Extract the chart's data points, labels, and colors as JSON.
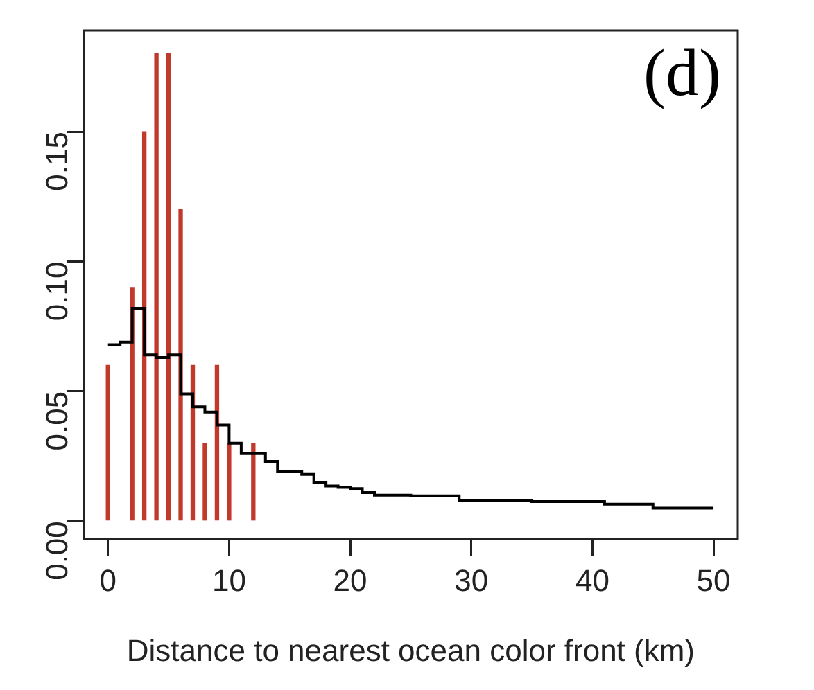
{
  "chart_data": {
    "type": "bar",
    "xlabel": "Distance to nearest ocean color front (km)",
    "annotations": [
      "(d)"
    ],
    "xlim": [
      -2,
      52
    ],
    "xticks": [
      0,
      10,
      20,
      30,
      40,
      50
    ],
    "ylim": [
      -0.007,
      0.189
    ],
    "yticks": [
      {
        "value": 0,
        "label": "0.00"
      },
      {
        "value": 0.05,
        "label": "0.05"
      },
      {
        "value": 0.1,
        "label": "0.10"
      },
      {
        "value": 0.15,
        "label": "0.15"
      }
    ],
    "grid": false,
    "legend": false,
    "series": [
      {
        "color": "#c0392b",
        "x": [
          0,
          2,
          3,
          4,
          5,
          6,
          7,
          8,
          9,
          10,
          12
        ],
        "values": [
          0.06,
          0.09,
          0.15,
          0.18,
          0.18,
          0.12,
          0.06,
          0.03,
          0.06,
          0.03,
          0.03
        ]
      },
      {
        "type": "step",
        "color": "#000000",
        "x": [
          0,
          1,
          2,
          3,
          4,
          5,
          6,
          7,
          8,
          9,
          10,
          11,
          12,
          13,
          14,
          15,
          16,
          17,
          18,
          19,
          20,
          21,
          22,
          23,
          24,
          25,
          26,
          27,
          28,
          29,
          30,
          31,
          32,
          33,
          34,
          35,
          36,
          37,
          38,
          39,
          40,
          41,
          42,
          43,
          44,
          45,
          46,
          47,
          48,
          49,
          50
        ],
        "values": [
          0.068,
          0.069,
          0.082,
          0.064,
          0.063,
          0.064,
          0.049,
          0.044,
          0.042,
          0.037,
          0.03,
          0.026,
          0.026,
          0.023,
          0.019,
          0.019,
          0.018,
          0.015,
          0.0135,
          0.013,
          0.0125,
          0.011,
          0.01,
          0.01,
          0.01,
          0.0097,
          0.0097,
          0.0097,
          0.0097,
          0.008,
          0.008,
          0.008,
          0.008,
          0.008,
          0.008,
          0.0075,
          0.0075,
          0.0075,
          0.0075,
          0.0075,
          0.0075,
          0.0065,
          0.0065,
          0.0065,
          0.0065,
          0.005,
          0.005,
          0.005,
          0.005,
          0.005,
          0.005
        ]
      }
    ]
  }
}
